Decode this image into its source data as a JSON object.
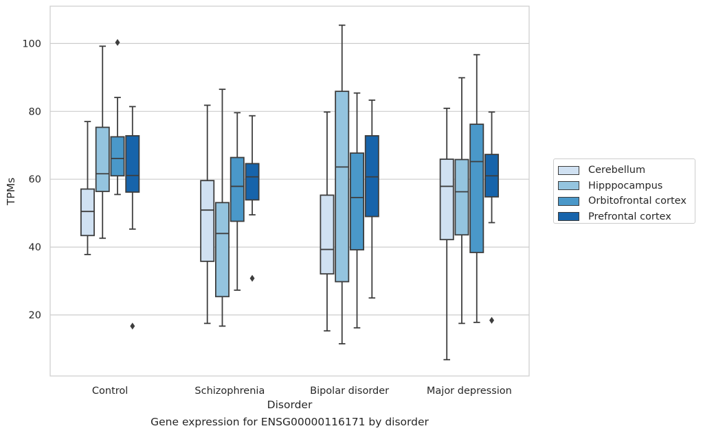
{
  "caption": "Gene expression for ENSG00000116171 by disorder",
  "chart_data": {
    "type": "box",
    "xlabel": "Disorder",
    "ylabel": "TPMs",
    "ylim": [
      2,
      111
    ],
    "yticks": [
      20,
      40,
      60,
      80,
      100
    ],
    "grid": "horizontal",
    "legend_position": "right",
    "categories": [
      "Control",
      "Schizophrenia",
      "Bipolar disorder",
      "Major depression"
    ],
    "series": [
      {
        "name": "Cerebellum",
        "color": "#d0e1f2",
        "boxes": [
          {
            "whisker_low": 37.8,
            "q1": 43.4,
            "median": 50.5,
            "q3": 57.1,
            "whisker_high": 77.0,
            "outliers": []
          },
          {
            "whisker_low": 17.5,
            "q1": 35.8,
            "median": 50.9,
            "q3": 59.6,
            "whisker_high": 81.8,
            "outliers": []
          },
          {
            "whisker_low": 15.3,
            "q1": 32.1,
            "median": 39.3,
            "q3": 55.3,
            "whisker_high": 79.8,
            "outliers": []
          },
          {
            "whisker_low": 6.8,
            "q1": 42.2,
            "median": 57.9,
            "q3": 65.9,
            "whisker_high": 80.9,
            "outliers": []
          }
        ]
      },
      {
        "name": "Hipppocampus",
        "color": "#94c4df",
        "boxes": [
          {
            "whisker_low": 42.6,
            "q1": 56.4,
            "median": 61.6,
            "q3": 75.3,
            "whisker_high": 99.2,
            "outliers": []
          },
          {
            "whisker_low": 16.7,
            "q1": 25.4,
            "median": 44.0,
            "q3": 53.1,
            "whisker_high": 86.5,
            "outliers": []
          },
          {
            "whisker_low": 11.5,
            "q1": 29.8,
            "median": 63.6,
            "q3": 85.9,
            "whisker_high": 105.4,
            "outliers": []
          },
          {
            "whisker_low": 17.5,
            "q1": 43.6,
            "median": 56.3,
            "q3": 65.8,
            "whisker_high": 89.9,
            "outliers": []
          }
        ]
      },
      {
        "name": "Orbitofrontal cortex",
        "color": "#4a98c9",
        "boxes": [
          {
            "whisker_low": 55.5,
            "q1": 61.0,
            "median": 66.1,
            "q3": 72.5,
            "whisker_high": 84.1,
            "outliers": [
              100.3
            ]
          },
          {
            "whisker_low": 27.3,
            "q1": 47.6,
            "median": 57.9,
            "q3": 66.4,
            "whisker_high": 79.6,
            "outliers": []
          },
          {
            "whisker_low": 16.2,
            "q1": 39.2,
            "median": 54.6,
            "q3": 67.7,
            "whisker_high": 85.4,
            "outliers": []
          },
          {
            "whisker_low": 17.8,
            "q1": 38.4,
            "median": 65.2,
            "q3": 76.2,
            "whisker_high": 96.7,
            "outliers": []
          }
        ]
      },
      {
        "name": "Prefrontal cortex",
        "color": "#1764ab",
        "boxes": [
          {
            "whisker_low": 45.3,
            "q1": 56.2,
            "median": 61.1,
            "q3": 72.8,
            "whisker_high": 81.4,
            "outliers": [
              16.7
            ]
          },
          {
            "whisker_low": 49.5,
            "q1": 53.9,
            "median": 60.7,
            "q3": 64.6,
            "whisker_high": 78.7,
            "outliers": [
              30.8
            ]
          },
          {
            "whisker_low": 25.0,
            "q1": 49.0,
            "median": 60.7,
            "q3": 72.8,
            "whisker_high": 83.3,
            "outliers": []
          },
          {
            "whisker_low": 47.2,
            "q1": 54.8,
            "median": 61.0,
            "q3": 67.3,
            "whisker_high": 79.8,
            "outliers": [
              18.4
            ]
          }
        ]
      }
    ]
  }
}
